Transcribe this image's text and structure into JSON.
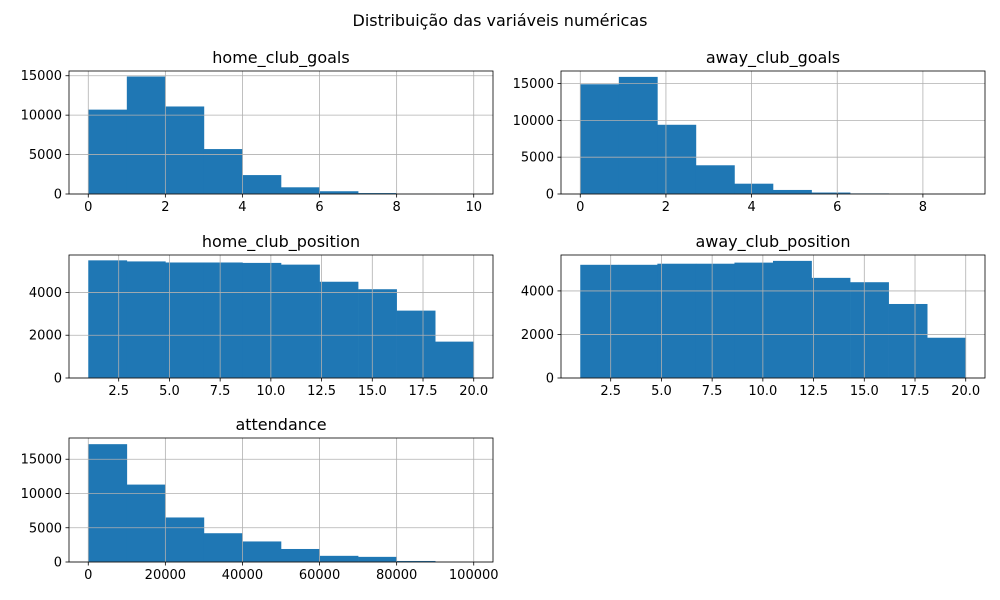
{
  "figure": {
    "suptitle": "Distribuição das variáveis numéricas"
  },
  "colors": {
    "bar": "#1f77b4",
    "grid": "#b0b0b0",
    "spine": "#000000"
  },
  "chart_data": [
    {
      "type": "bar",
      "title": "home_club_goals",
      "grid": true,
      "bin_edges": [
        0,
        1,
        2,
        3,
        4,
        5,
        6,
        7,
        8,
        9,
        10
      ],
      "values": [
        10700,
        14900,
        11100,
        5700,
        2400,
        850,
        350,
        120,
        40,
        15
      ],
      "xlim": [
        -0.5,
        10.5
      ],
      "ylim": [
        0,
        15600
      ],
      "xticks": [
        0,
        2,
        4,
        6,
        8,
        10
      ],
      "xtick_labels": [
        "0",
        "2",
        "4",
        "6",
        "8",
        "10"
      ],
      "yticks": [
        0,
        5000,
        10000,
        15000
      ],
      "ytick_labels": [
        "0",
        "5000",
        "10000",
        "15000"
      ]
    },
    {
      "type": "bar",
      "title": "away_club_goals",
      "grid": true,
      "bin_edges": [
        0,
        0.9,
        1.8,
        2.7,
        3.6,
        4.5,
        5.4,
        6.3,
        7.2,
        8.1,
        9
      ],
      "values": [
        14900,
        15900,
        9400,
        3900,
        1400,
        550,
        200,
        80,
        25,
        10
      ],
      "xlim": [
        -0.45,
        9.45
      ],
      "ylim": [
        0,
        16700
      ],
      "xticks": [
        0,
        2,
        4,
        6,
        8
      ],
      "xtick_labels": [
        "0",
        "2",
        "4",
        "6",
        "8"
      ],
      "yticks": [
        0,
        5000,
        10000,
        15000
      ],
      "ytick_labels": [
        "0",
        "5000",
        "10000",
        "15000"
      ]
    },
    {
      "type": "bar",
      "title": "home_club_position",
      "grid": true,
      "bin_edges": [
        1,
        2.9,
        4.8,
        6.7,
        8.6,
        10.5,
        12.4,
        14.3,
        16.2,
        18.1,
        20
      ],
      "values": [
        5500,
        5450,
        5400,
        5400,
        5380,
        5300,
        4500,
        4150,
        3150,
        1700
      ],
      "xlim": [
        0.05,
        20.95
      ],
      "ylim": [
        0,
        5750
      ],
      "xticks": [
        2.5,
        5,
        7.5,
        10,
        12.5,
        15,
        17.5,
        20
      ],
      "xtick_labels": [
        "2.5",
        "5.0",
        "7.5",
        "10.0",
        "12.5",
        "15.0",
        "17.5",
        "20.0"
      ],
      "yticks": [
        0,
        2000,
        4000
      ],
      "ytick_labels": [
        "0",
        "2000",
        "4000"
      ]
    },
    {
      "type": "bar",
      "title": "away_club_position",
      "grid": true,
      "bin_edges": [
        1,
        2.9,
        4.8,
        6.7,
        8.6,
        10.5,
        12.4,
        14.3,
        16.2,
        18.1,
        20
      ],
      "values": [
        5200,
        5200,
        5250,
        5250,
        5300,
        5380,
        4600,
        4400,
        3400,
        1850
      ],
      "xlim": [
        0.05,
        20.95
      ],
      "ylim": [
        0,
        5650
      ],
      "xticks": [
        2.5,
        5,
        7.5,
        10,
        12.5,
        15,
        17.5,
        20
      ],
      "xtick_labels": [
        "2.5",
        "5.0",
        "7.5",
        "10.0",
        "12.5",
        "15.0",
        "17.5",
        "20.0"
      ],
      "yticks": [
        0,
        2000,
        4000
      ],
      "ytick_labels": [
        "0",
        "2000",
        "4000"
      ]
    },
    {
      "type": "bar",
      "title": "attendance",
      "grid": true,
      "bin_edges": [
        0,
        10000,
        20000,
        30000,
        40000,
        50000,
        60000,
        70000,
        80000,
        90000,
        100000
      ],
      "values": [
        17200,
        11300,
        6500,
        4200,
        3000,
        1900,
        900,
        750,
        150,
        20
      ],
      "xlim": [
        -5000,
        105000
      ],
      "ylim": [
        0,
        18100
      ],
      "xticks": [
        0,
        20000,
        40000,
        60000,
        80000,
        100000
      ],
      "xtick_labels": [
        "0",
        "20000",
        "40000",
        "60000",
        "80000",
        "100000"
      ],
      "yticks": [
        0,
        5000,
        10000,
        15000
      ],
      "ytick_labels": [
        "0",
        "5000",
        "10000",
        "15000"
      ]
    }
  ]
}
